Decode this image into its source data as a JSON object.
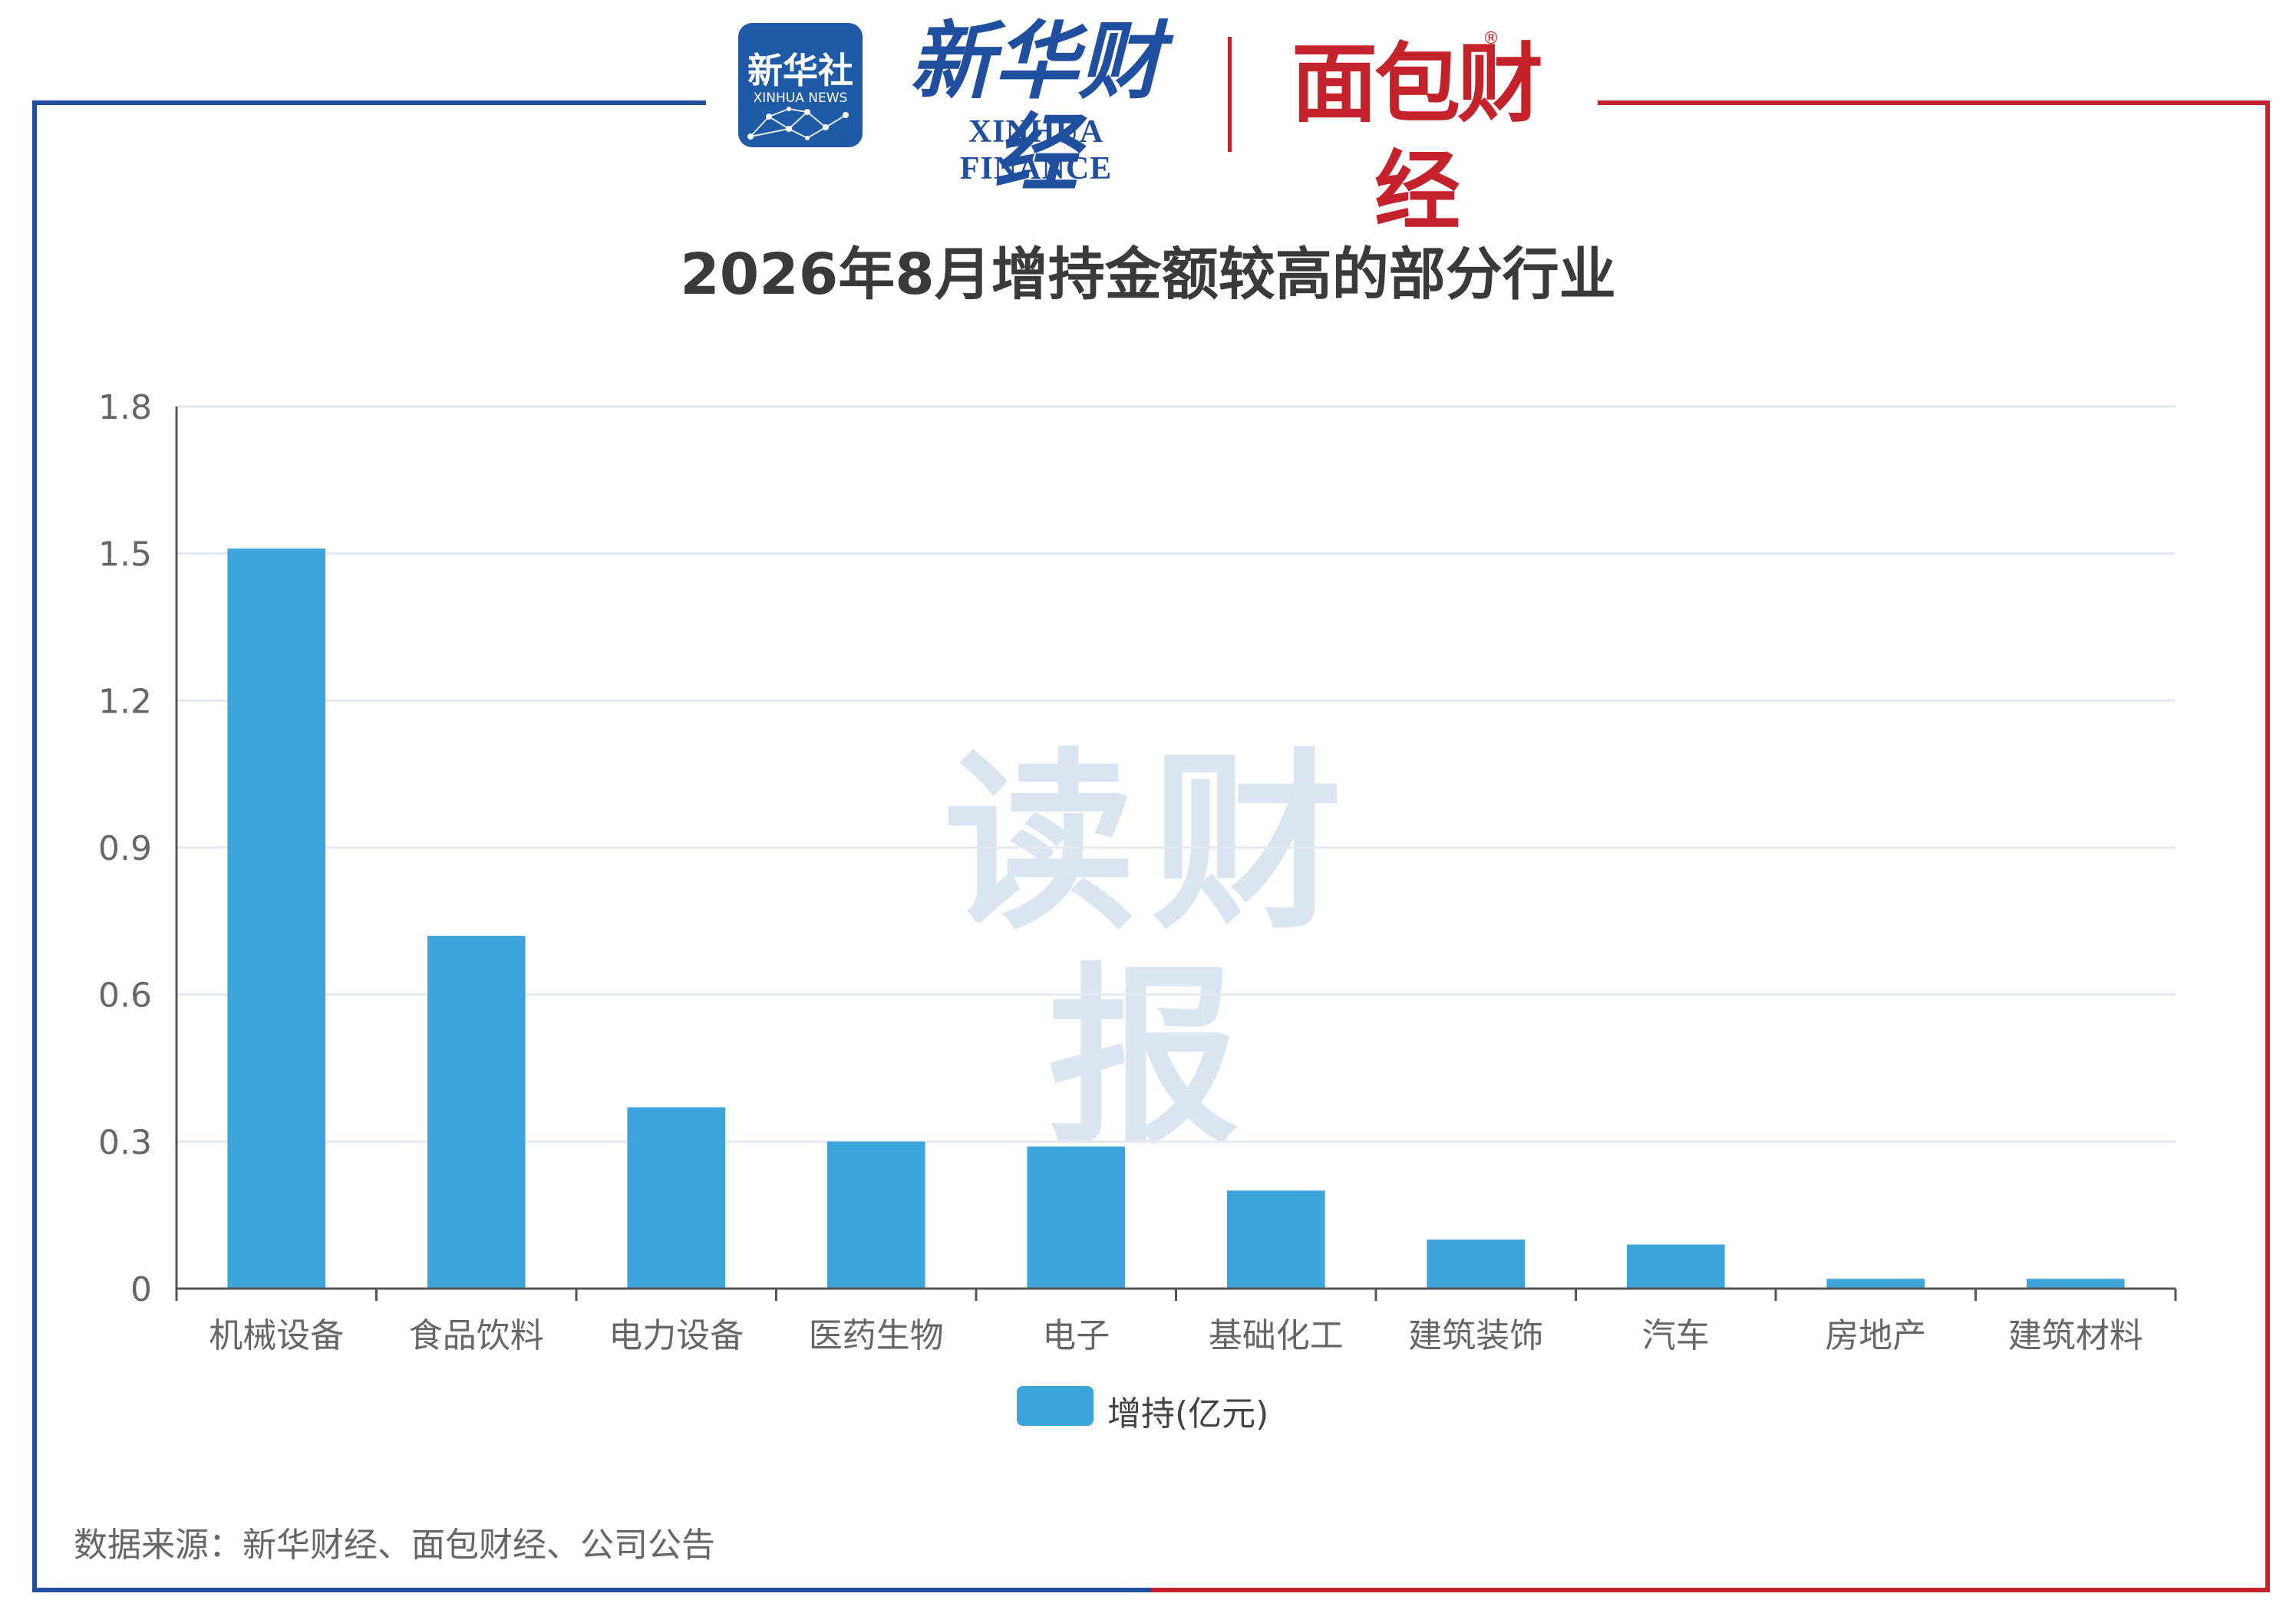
{
  "header": {
    "xinhua_news_logo": {
      "main": "新华社",
      "sub": "XINHUA NEWS"
    },
    "xinhua_finance_logo": {
      "cn": "新华财经",
      "en": "XINHUA FINANCE"
    },
    "mianbao_logo": {
      "text": "面包财经",
      "mark": "®"
    }
  },
  "watermark": "读财报",
  "footer": {
    "source": "数据来源：新华财经、面包财经、公司公告"
  },
  "colors": {
    "frame_left": "#1f4f9e",
    "frame_right": "#c4232b",
    "bar": "#3da4dc",
    "grid": "#e4e8f1",
    "axis": "#555555",
    "tick_text": "#666666"
  },
  "chart_data": {
    "type": "bar",
    "title": "2026年8月增持金额较高的部分行业",
    "categories": [
      "机械设备",
      "食品饮料",
      "电力设备",
      "医药生物",
      "电子",
      "基础化工",
      "建筑装饰",
      "汽车",
      "房地产",
      "建筑材料"
    ],
    "series": [
      {
        "name": "增持(亿元)",
        "values": [
          1.51,
          0.72,
          0.37,
          0.3,
          0.29,
          0.2,
          0.1,
          0.09,
          0.02,
          0.02
        ]
      }
    ],
    "yticks": [
      "0",
      "0.3",
      "0.6",
      "0.9",
      "1.2",
      "1.5",
      "1.8"
    ],
    "ylim": [
      0,
      1.8
    ],
    "grid": true,
    "legend_position": "bottom-center"
  }
}
